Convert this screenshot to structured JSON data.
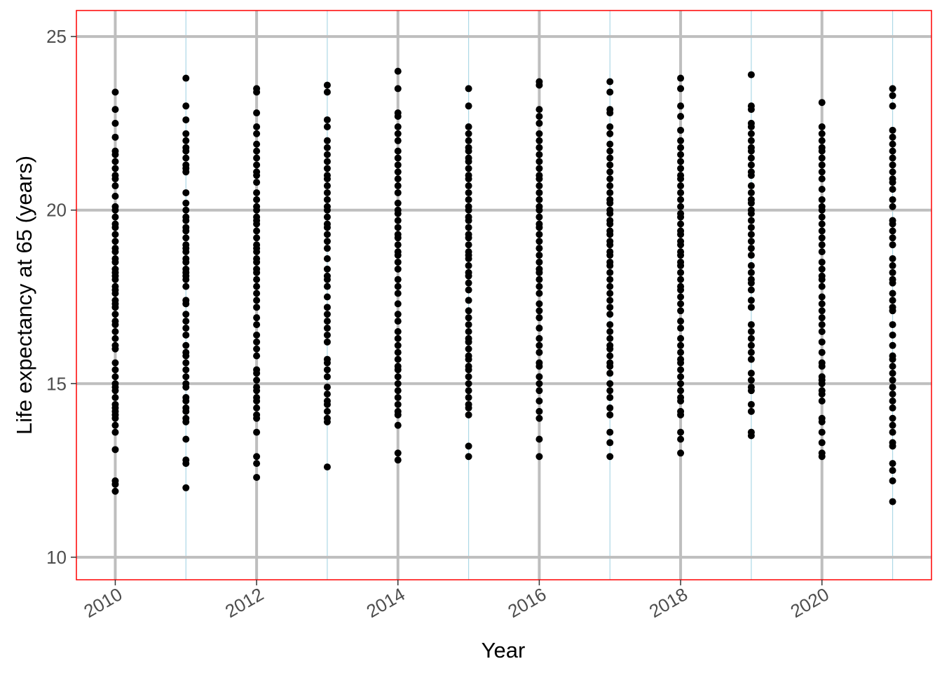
{
  "chart_data": {
    "type": "scatter",
    "title": "",
    "xlabel": "Year",
    "ylabel": "Life expectancy at 65 (years)",
    "xlim": [
      2009.45,
      2021.55
    ],
    "ylim": [
      9.35,
      25.75
    ],
    "x_ticks": [
      2010,
      2012,
      2014,
      2016,
      2018,
      2020
    ],
    "x_minor": [
      2011,
      2013,
      2015,
      2017,
      2019,
      2021
    ],
    "y_ticks": [
      10,
      15,
      20,
      25
    ],
    "grid": true,
    "legend": "none",
    "colors": {
      "points": "#000000",
      "major_grid": "#bebebe",
      "minor_grid_x": "#add8e6",
      "panel_border": "#ff0000",
      "tick_label": "#4d4d4d"
    },
    "points_by_year": [
      {
        "x": 2010,
        "y": [
          11.9,
          12.1,
          12.2,
          13.1,
          13.6,
          13.8,
          14.0,
          14.1,
          14.2,
          14.3,
          14.4,
          14.6,
          14.8,
          14.9,
          15.0,
          15.2,
          15.4,
          15.6,
          16.0,
          16.1,
          16.3,
          16.5,
          16.7,
          16.8,
          17.0,
          17.2,
          17.3,
          17.4,
          17.6,
          17.7,
          17.8,
          18.0,
          18.1,
          18.2,
          18.3,
          18.5,
          18.6,
          18.8,
          18.9,
          19.1,
          19.3,
          19.5,
          19.6,
          19.8,
          20.0,
          20.1,
          20.4,
          20.7,
          20.9,
          21.0,
          21.2,
          21.4,
          21.6,
          21.7,
          22.1,
          22.5,
          22.9,
          23.4
        ]
      },
      {
        "x": 2011,
        "y": [
          12.0,
          12.7,
          12.8,
          13.4,
          13.9,
          14.0,
          14.2,
          14.3,
          14.5,
          14.6,
          14.9,
          15.0,
          15.2,
          15.4,
          15.6,
          15.8,
          15.9,
          16.1,
          16.4,
          16.6,
          16.8,
          17.0,
          17.3,
          17.4,
          17.8,
          18.0,
          18.1,
          18.2,
          18.3,
          18.5,
          18.6,
          18.8,
          18.9,
          19.0,
          19.2,
          19.4,
          19.5,
          19.7,
          19.8,
          20.0,
          20.2,
          20.5,
          21.1,
          21.2,
          21.3,
          21.5,
          21.7,
          21.8,
          22.0,
          22.2,
          22.6,
          23.0,
          23.8
        ]
      },
      {
        "x": 2012,
        "y": [
          12.3,
          12.7,
          12.9,
          13.6,
          14.0,
          14.1,
          14.3,
          14.5,
          14.6,
          14.8,
          14.9,
          15.1,
          15.3,
          15.4,
          15.8,
          16.0,
          16.2,
          16.4,
          16.7,
          16.9,
          17.2,
          17.4,
          17.6,
          17.8,
          18.0,
          18.2,
          18.3,
          18.5,
          18.6,
          18.8,
          18.9,
          19.0,
          19.2,
          19.4,
          19.6,
          19.7,
          19.8,
          20.0,
          20.1,
          20.3,
          20.5,
          20.8,
          21.0,
          21.1,
          21.3,
          21.5,
          21.7,
          21.9,
          22.2,
          22.4,
          22.8,
          23.4,
          23.5
        ]
      },
      {
        "x": 2013,
        "y": [
          12.6,
          13.9,
          14.0,
          14.2,
          14.4,
          14.5,
          14.7,
          14.9,
          15.2,
          15.4,
          15.6,
          15.7,
          16.2,
          16.4,
          16.6,
          16.8,
          17.0,
          17.2,
          17.5,
          17.8,
          18.0,
          18.1,
          18.3,
          18.6,
          18.9,
          19.1,
          19.3,
          19.5,
          19.6,
          19.8,
          20.0,
          20.1,
          20.3,
          20.5,
          20.7,
          20.9,
          21.0,
          21.2,
          21.4,
          21.6,
          21.8,
          22.0,
          22.4,
          22.6,
          23.4,
          23.6
        ]
      },
      {
        "x": 2014,
        "y": [
          12.8,
          13.0,
          13.8,
          14.1,
          14.2,
          14.4,
          14.6,
          14.8,
          15.0,
          15.2,
          15.4,
          15.5,
          15.7,
          15.9,
          16.1,
          16.3,
          16.5,
          16.8,
          17.0,
          17.3,
          17.6,
          17.8,
          18.0,
          18.3,
          18.5,
          18.7,
          18.8,
          19.0,
          19.2,
          19.3,
          19.5,
          19.7,
          19.9,
          20.0,
          20.2,
          20.5,
          20.7,
          20.9,
          21.1,
          21.3,
          21.5,
          21.7,
          22.0,
          22.2,
          22.4,
          22.7,
          22.8,
          23.5,
          24.0
        ]
      },
      {
        "x": 2015,
        "y": [
          12.9,
          13.2,
          14.1,
          14.3,
          14.4,
          14.6,
          14.8,
          15.0,
          15.2,
          15.4,
          15.5,
          15.7,
          15.8,
          16.0,
          16.2,
          16.3,
          16.5,
          16.7,
          16.9,
          17.1,
          17.4,
          17.7,
          17.9,
          18.1,
          18.2,
          18.4,
          18.6,
          18.7,
          18.8,
          19.0,
          19.2,
          19.3,
          19.5,
          19.7,
          19.8,
          20.0,
          20.1,
          20.3,
          20.5,
          20.7,
          20.9,
          21.0,
          21.2,
          21.4,
          21.5,
          21.7,
          21.8,
          22.0,
          22.2,
          22.4,
          23.0,
          23.5
        ]
      },
      {
        "x": 2016,
        "y": [
          12.9,
          13.4,
          14.0,
          14.2,
          14.5,
          14.8,
          15.0,
          15.2,
          15.5,
          15.6,
          15.9,
          16.1,
          16.3,
          16.6,
          16.9,
          17.1,
          17.3,
          17.6,
          17.8,
          18.0,
          18.2,
          18.3,
          18.5,
          18.7,
          18.9,
          19.1,
          19.3,
          19.5,
          19.6,
          19.8,
          20.0,
          20.1,
          20.3,
          20.5,
          20.7,
          20.9,
          21.0,
          21.2,
          21.4,
          21.6,
          21.8,
          22.0,
          22.2,
          22.5,
          22.7,
          22.9,
          23.6,
          23.7
        ]
      },
      {
        "x": 2017,
        "y": [
          12.9,
          13.3,
          13.6,
          14.1,
          14.3,
          14.6,
          14.8,
          15.0,
          15.3,
          15.5,
          15.6,
          15.8,
          16.0,
          16.1,
          16.3,
          16.5,
          16.7,
          17.0,
          17.2,
          17.4,
          17.6,
          17.8,
          18.0,
          18.2,
          18.4,
          18.5,
          18.7,
          18.8,
          19.0,
          19.1,
          19.3,
          19.4,
          19.6,
          19.7,
          19.9,
          20.0,
          20.2,
          20.3,
          20.5,
          20.7,
          20.9,
          21.1,
          21.3,
          21.5,
          21.7,
          21.9,
          22.2,
          22.4,
          22.8,
          22.9,
          23.4,
          23.7
        ]
      },
      {
        "x": 2018,
        "y": [
          13.0,
          13.4,
          13.6,
          14.1,
          14.2,
          14.5,
          14.6,
          14.8,
          15.0,
          15.2,
          15.4,
          15.6,
          15.7,
          15.9,
          16.1,
          16.3,
          16.6,
          16.8,
          17.1,
          17.3,
          17.5,
          17.7,
          17.8,
          18.0,
          18.2,
          18.4,
          18.5,
          18.7,
          18.8,
          19.0,
          19.1,
          19.3,
          19.4,
          19.6,
          19.8,
          19.9,
          20.1,
          20.3,
          20.5,
          20.7,
          20.9,
          21.0,
          21.2,
          21.4,
          21.6,
          21.8,
          22.0,
          22.3,
          22.7,
          23.0,
          23.5,
          23.8
        ]
      },
      {
        "x": 2019,
        "y": [
          13.5,
          13.6,
          14.2,
          14.4,
          14.8,
          14.9,
          15.1,
          15.3,
          15.7,
          15.9,
          16.1,
          16.3,
          16.5,
          16.7,
          17.2,
          17.4,
          17.7,
          17.9,
          18.0,
          18.2,
          18.4,
          18.7,
          18.9,
          19.1,
          19.3,
          19.5,
          19.7,
          19.9,
          20.0,
          20.2,
          20.3,
          20.5,
          20.7,
          21.0,
          21.1,
          21.3,
          21.5,
          21.7,
          21.8,
          22.0,
          22.2,
          22.4,
          22.5,
          22.9,
          23.0,
          23.9
        ]
      },
      {
        "x": 2020,
        "y": [
          12.9,
          13.0,
          13.3,
          13.6,
          13.9,
          14.0,
          14.5,
          14.7,
          14.8,
          15.0,
          15.1,
          15.2,
          15.5,
          15.6,
          15.9,
          16.2,
          16.5,
          16.7,
          16.9,
          17.1,
          17.3,
          17.5,
          17.8,
          18.0,
          18.1,
          18.3,
          18.5,
          18.8,
          19.0,
          19.2,
          19.4,
          19.6,
          19.8,
          20.0,
          20.1,
          20.3,
          20.6,
          20.9,
          21.1,
          21.3,
          21.5,
          21.7,
          21.8,
          22.0,
          22.2,
          22.4,
          23.1
        ]
      },
      {
        "x": 2021,
        "y": [
          11.6,
          12.2,
          12.5,
          12.7,
          13.2,
          13.3,
          13.6,
          13.8,
          14.0,
          14.3,
          14.5,
          14.7,
          14.9,
          15.1,
          15.3,
          15.5,
          15.7,
          15.8,
          16.1,
          16.4,
          16.7,
          17.1,
          17.2,
          17.4,
          17.6,
          17.9,
          18.0,
          18.2,
          18.4,
          18.6,
          19.0,
          19.2,
          19.4,
          19.6,
          19.7,
          20.1,
          20.3,
          20.6,
          20.8,
          20.9,
          21.1,
          21.3,
          21.5,
          21.7,
          21.9,
          22.1,
          22.3,
          23.0,
          23.3,
          23.5
        ]
      }
    ]
  }
}
